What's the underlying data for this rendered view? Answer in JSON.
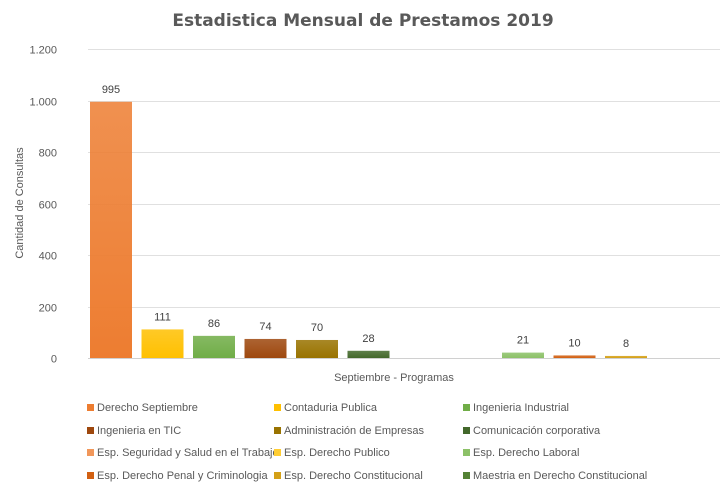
{
  "chart_data": {
    "type": "bar",
    "title": "Estadistica Mensual de Prestamos 2019",
    "xlabel": "Septiembre - Programas",
    "ylabel": "Cantidad de Consultas",
    "ylim": [
      0,
      1200
    ],
    "yticks": [
      0,
      200,
      400,
      600,
      800,
      1000,
      1200
    ],
    "ytick_labels": [
      "0",
      "200",
      "400",
      "600",
      "800",
      "1.000",
      "1.200"
    ],
    "grid": true,
    "legend_position": "bottom",
    "categories": [
      "Septiembre - Programas"
    ],
    "series": [
      {
        "name": "Derecho Septiembre",
        "values": [
          995
        ],
        "color": "#ED7D31"
      },
      {
        "name": "Contaduria Publica",
        "values": [
          111
        ],
        "color": "#FFC000"
      },
      {
        "name": "Ingenieria Industrial",
        "values": [
          86
        ],
        "color": "#70AD47"
      },
      {
        "name": "Ingenieria en TIC",
        "values": [
          74
        ],
        "color": "#9E480E"
      },
      {
        "name": "Administración de Empresas",
        "values": [
          70
        ],
        "color": "#997300"
      },
      {
        "name": "Comunicación corporativa",
        "values": [
          28
        ],
        "color": "#43682B"
      },
      {
        "name": "Esp. Seguridad y Salud en el Trabajo",
        "values": [
          null
        ],
        "color": "#F1975A"
      },
      {
        "name": "Esp. Derecho Publico",
        "values": [
          null
        ],
        "color": "#FFCD33"
      },
      {
        "name": "Esp. Derecho Laboral",
        "values": [
          21
        ],
        "color": "#8CC168"
      },
      {
        "name": "Esp. Derecho Penal y Criminologia",
        "values": [
          10
        ],
        "color": "#D26012"
      },
      {
        "name": "Esp. Derecho Constitucional",
        "values": [
          8
        ],
        "color": "#D4A017"
      },
      {
        "name": "Maestria en Derecho Constitucional",
        "values": [
          null
        ],
        "color": "#548235"
      }
    ]
  }
}
